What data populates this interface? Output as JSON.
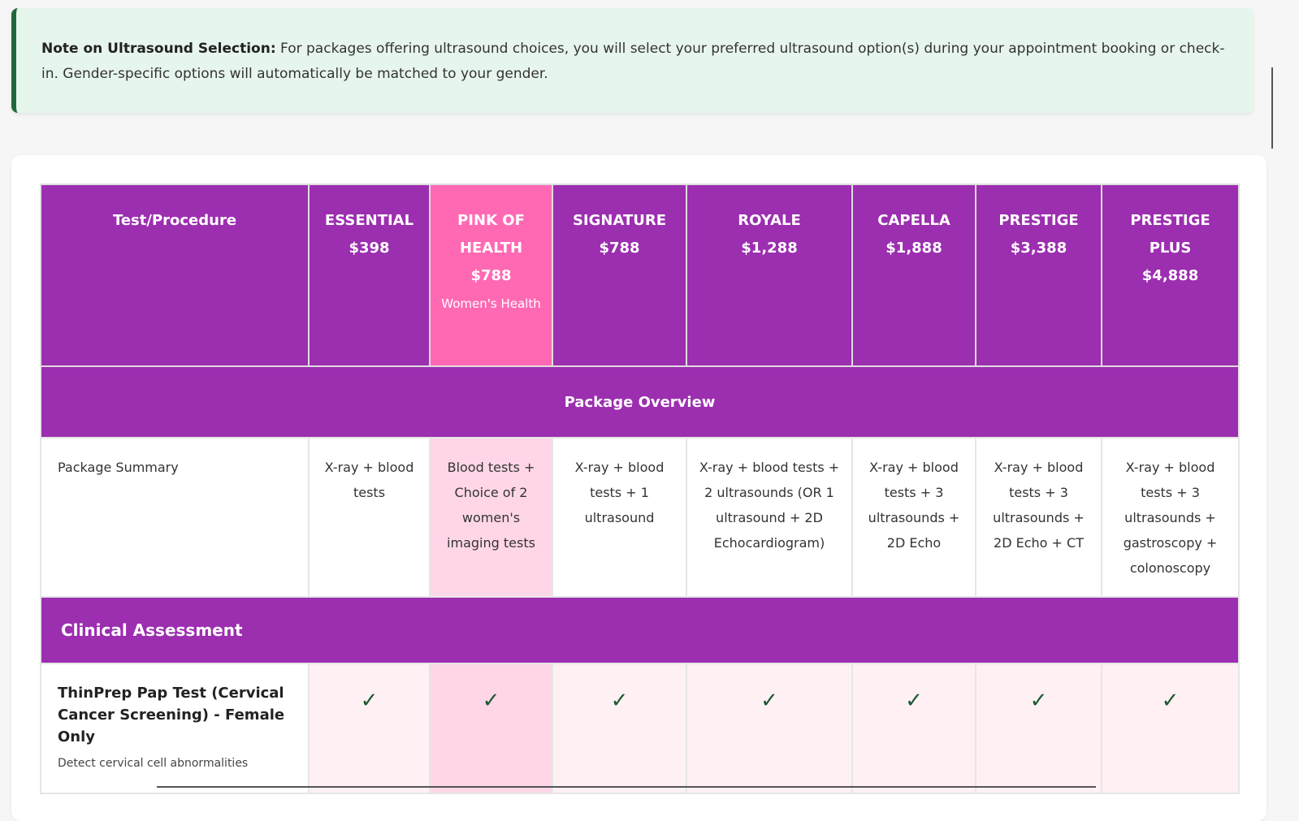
{
  "note": {
    "heading": "Note on Ultrasound Selection:",
    "text": " For packages offering ultrasound choices, you will select your preferred ultrasound option(s) during your appointment booking or check-in. Gender-specific options will automatically be matched to your gender."
  },
  "table": {
    "header": {
      "test_label": "Test/Procedure",
      "packages": [
        {
          "name": "ESSENTIAL",
          "price": "$398"
        },
        {
          "name": "PINK OF HEALTH",
          "price": "$788",
          "sub": "Women's Health"
        },
        {
          "name": "SIGNATURE",
          "price": "$788"
        },
        {
          "name": "ROYALE",
          "price": "$1,288"
        },
        {
          "name": "CAPELLA",
          "price": "$1,888"
        },
        {
          "name": "PRESTIGE",
          "price": "$3,388"
        },
        {
          "name": "PRESTIGE PLUS",
          "price": "$4,888"
        }
      ]
    },
    "overview_label": "Package Overview",
    "summary": {
      "label": "Package Summary",
      "values": [
        "X-ray + blood tests",
        "Blood tests + Choice of 2 women's imaging tests",
        "X-ray + blood tests + 1 ultrasound",
        "X-ray + blood tests + 2 ultrasounds (OR 1 ultrasound + 2D Echocardiogram)",
        "X-ray + blood tests + 3 ultrasounds + 2D Echo",
        "X-ray + blood tests + 3 ultrasounds + 2D Echo + CT",
        "X-ray + blood tests + 3 ultrasounds + gastroscopy + colonoscopy"
      ]
    },
    "clinical_section": "Clinical Assessment",
    "pap": {
      "label": "ThinPrep Pap Test (Cervical Cancer Screening) - Female Only",
      "desc": "Detect cervical cell abnormalities",
      "marks": [
        "✓",
        "✓",
        "✓",
        "✓",
        "✓",
        "✓",
        "✓"
      ]
    }
  }
}
